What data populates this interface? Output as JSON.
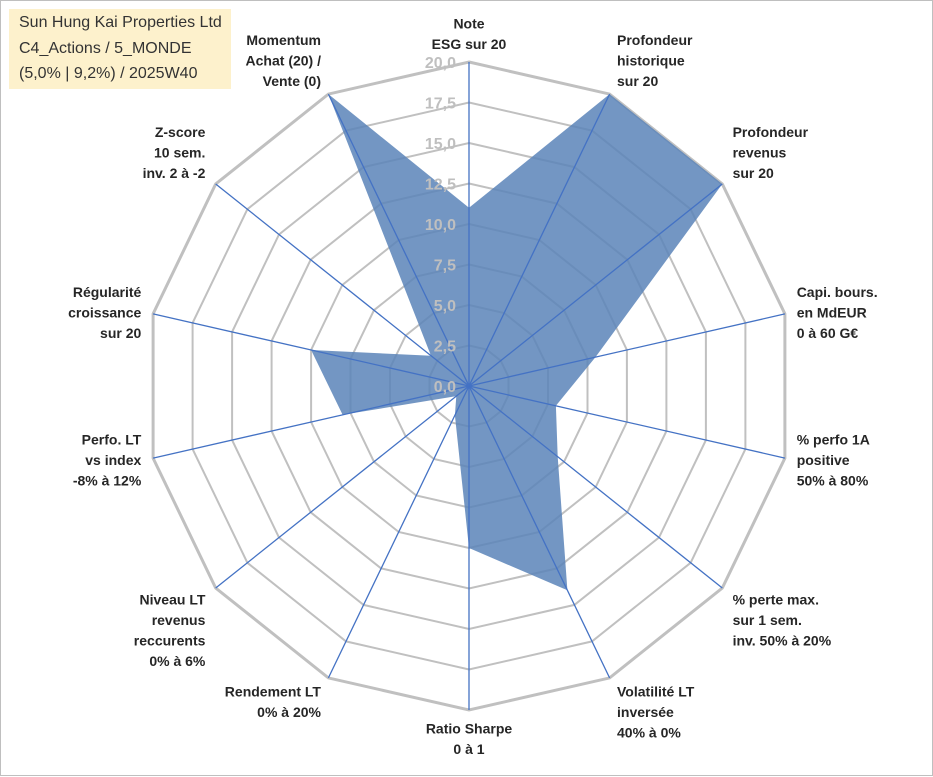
{
  "title_box": {
    "line1": "Sun Hung Kai Properties Ltd",
    "line2": "C4_Actions / 5_MONDE",
    "line3": "(5,0% | 9,2%) / 2025W40"
  },
  "colors": {
    "fill": "#5b84b8",
    "spoke": "#4472c4",
    "grid": "#c0c0c0",
    "title_bg": "#fdf1cc"
  },
  "chart_data": {
    "type": "radar",
    "rmin": 0,
    "rmax": 20,
    "tick_step": 2.5,
    "tick_labels": [
      "0,0",
      "2,5",
      "5,0",
      "7,5",
      "10,0",
      "12,5",
      "15,0",
      "17,5",
      "20,0"
    ],
    "categories": [
      [
        "Note",
        "ESG sur 20"
      ],
      [
        "Profondeur",
        "historique",
        "sur 20"
      ],
      [
        "Profondeur",
        "revenus",
        "sur 20"
      ],
      [
        "Capi. bours.",
        "en MdEUR",
        "0 à 60 G€"
      ],
      [
        "% perfo 1A",
        "positive",
        "50% à 80%"
      ],
      [
        "% perte max.",
        "sur 1 sem.",
        "inv. 50% à 20%"
      ],
      [
        "Volatilité LT",
        "inversée",
        "40% à 0%"
      ],
      [
        "Ratio Sharpe",
        "0 à 1"
      ],
      [
        "Rendement LT",
        "0% à 20%"
      ],
      [
        "Niveau LT",
        "revenus",
        "reccurents",
        "0% à 6%"
      ],
      [
        "Perfo. LT",
        "vs index",
        "-8% à 12%"
      ],
      [
        "Régularité",
        "croissance",
        "sur 20"
      ],
      [
        "Z-score",
        "10 sem.",
        "inv. 2 à -2"
      ],
      [
        "Momentum",
        "Achat (20) /",
        "Vente (0)"
      ]
    ],
    "series": [
      {
        "values": [
          11,
          20,
          20,
          8,
          5.5,
          7,
          14,
          10,
          2,
          1,
          8,
          10,
          3,
          20
        ]
      }
    ],
    "grid": true,
    "legend": "none"
  }
}
